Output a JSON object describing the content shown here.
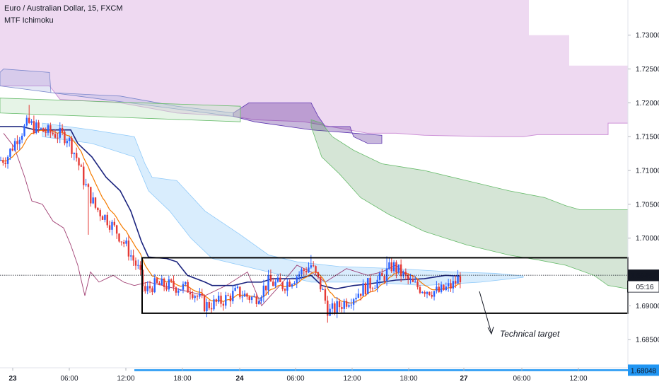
{
  "chart_data": {
    "type": "candlestick",
    "title": "Euro / Australian Dollar, 15, FXCM",
    "indicator": "MTF Ichimoku",
    "x_ticks": [
      "23",
      "06:00",
      "12:00",
      "18:00",
      "24",
      "06:00",
      "12:00",
      "18:00",
      "27",
      "06:00",
      "12:00"
    ],
    "y_ticks": [
      "1.73000",
      "1.72500",
      "1.72000",
      "1.71500",
      "1.71000",
      "1.70500",
      "1.70000",
      "1.69500",
      "1.69000",
      "1.68500",
      "1.68000"
    ],
    "ylim": [
      1.6777,
      1.7352
    ],
    "last_price": 1.69452,
    "last_price_label": "1.69452",
    "countdown": "05:16",
    "target_price": 1.68048,
    "target_label": "1.68048",
    "annotation": "Technical target",
    "range_box": {
      "x_start": "13:30",
      "x_end": "end",
      "upper": 1.6971,
      "lower": 1.6889
    },
    "colors": {
      "up": "#2962ff",
      "down": "#e53935",
      "conversion": "#f57c00",
      "base": "#1a237e",
      "lagging": "#880e4f",
      "cloud_htf": "#ce93d8",
      "cloud_htf_bear": "#4a148c",
      "cloud_green": "#2e7d32",
      "cloud_blue": "#42a5f5",
      "target_line": "#2196f3"
    }
  }
}
